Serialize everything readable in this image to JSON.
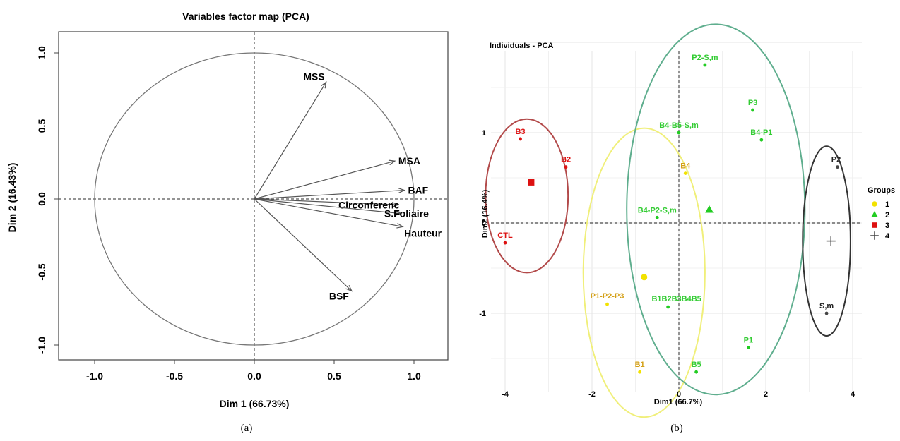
{
  "figure_labels": [
    "(a)",
    "(b)"
  ],
  "chart_data": [
    {
      "type": "scatter",
      "subtype": "pca-variables-correlation-circle",
      "title": "Variables factor map (PCA)",
      "xlabel": "Dim 1 (66.73%)",
      "ylabel": "Dim 2 (16.43%)",
      "xlim": [
        -1.2,
        1.2
      ],
      "ylim": [
        -1.1,
        1.1
      ],
      "xticks": [
        -1.0,
        -0.5,
        0.0,
        0.5,
        1.0
      ],
      "xtick_labels": [
        "-1.0",
        "-0.5",
        "0.0",
        "0.5",
        "1.0"
      ],
      "yticks": [
        -1.0,
        -0.5,
        0.0,
        0.5,
        1.0
      ],
      "ytick_labels": [
        "-1.0",
        "-0.5",
        "0.0",
        "0.5",
        "1.0"
      ],
      "circle_radius": 1.0,
      "grid": false,
      "arrows": [
        {
          "name": "MSS",
          "x": 0.45,
          "y": 0.8
        },
        {
          "name": "MSA",
          "x": 0.88,
          "y": 0.26
        },
        {
          "name": "BAF",
          "x": 0.94,
          "y": 0.06
        },
        {
          "name": "Circonferenc",
          "x": 0.9,
          "y": -0.04
        },
        {
          "name": "S.Foliaire",
          "x": 0.92,
          "y": -0.1
        },
        {
          "name": "Hauteur",
          "x": 0.93,
          "y": -0.19
        },
        {
          "name": "BSF",
          "x": 0.61,
          "y": -0.63
        }
      ]
    },
    {
      "type": "scatter",
      "subtype": "pca-individuals",
      "title": "Individuals - PCA",
      "xlabel": "Dim1 (66.7%)",
      "ylabel": "Dim2 (16.4%)",
      "xlim": [
        -4.4,
        4.4
      ],
      "ylim": [
        -1.9,
        2.0
      ],
      "xticks": [
        -4,
        -2,
        0,
        2,
        4
      ],
      "xtick_labels": [
        "-4",
        "-2",
        "0",
        "2",
        "4"
      ],
      "yticks": [
        -1,
        0,
        1
      ],
      "ytick_labels": [
        "-1",
        "0",
        "1"
      ],
      "grid": true,
      "legend": {
        "title": "Groups",
        "position": "right"
      },
      "groups": [
        {
          "name": "1",
          "color": "#f2e200",
          "marker": "circle",
          "centroid": [
            -0.8,
            -0.6
          ],
          "ellipse": {
            "cx": -0.8,
            "cy": -0.55,
            "rx": 1.4,
            "ry": 1.6
          }
        },
        {
          "name": "2",
          "color": "#22cc22",
          "marker": "triangle",
          "centroid": [
            0.7,
            0.15
          ],
          "ellipse": {
            "cx": 0.85,
            "cy": 0.15,
            "rx": 2.05,
            "ry": 2.05
          }
        },
        {
          "name": "3",
          "color": "#dd1111",
          "marker": "square",
          "centroid": [
            -3.4,
            0.45
          ],
          "ellipse": {
            "cx": -3.5,
            "cy": 0.3,
            "rx": 0.95,
            "ry": 0.85
          }
        },
        {
          "name": "4",
          "color": "#444444",
          "marker": "plus",
          "centroid": [
            3.5,
            -0.2
          ],
          "ellipse": {
            "cx": 3.4,
            "cy": -0.2,
            "rx": 0.55,
            "ry": 1.05
          }
        }
      ],
      "points": [
        {
          "label": "B3",
          "x": -3.65,
          "y": 0.93,
          "group": "3"
        },
        {
          "label": "B2",
          "x": -2.6,
          "y": 0.62,
          "group": "3"
        },
        {
          "label": "CTL",
          "x": -4.0,
          "y": -0.22,
          "group": "3"
        },
        {
          "label": "B4",
          "x": 0.15,
          "y": 0.55,
          "group": "1"
        },
        {
          "label": "P1-P2-P3",
          "x": -1.65,
          "y": -0.9,
          "group": "1"
        },
        {
          "label": "B1",
          "x": -0.9,
          "y": -1.65,
          "group": "1"
        },
        {
          "label": "P2-S,m",
          "x": 0.6,
          "y": 1.75,
          "group": "2"
        },
        {
          "label": "P3",
          "x": 1.7,
          "y": 1.25,
          "group": "2"
        },
        {
          "label": "B4-B5-S,m",
          "x": 0.0,
          "y": 1.0,
          "group": "2"
        },
        {
          "label": "B4-P1",
          "x": 1.9,
          "y": 0.92,
          "group": "2"
        },
        {
          "label": "B4-P2-S,m",
          "x": -0.5,
          "y": 0.06,
          "group": "2"
        },
        {
          "label": "B1B2B3B4B5",
          "x": -0.25,
          "y": -0.93,
          "group": "2"
        },
        {
          "label": "P1",
          "x": 1.6,
          "y": -1.38,
          "group": "2"
        },
        {
          "label": "B5",
          "x": 0.4,
          "y": -1.65,
          "group": "2"
        },
        {
          "label": "P2",
          "x": 3.65,
          "y": 0.62,
          "group": "4"
        },
        {
          "label": "S,m",
          "x": 3.4,
          "y": -1.0,
          "group": "4"
        }
      ]
    }
  ]
}
